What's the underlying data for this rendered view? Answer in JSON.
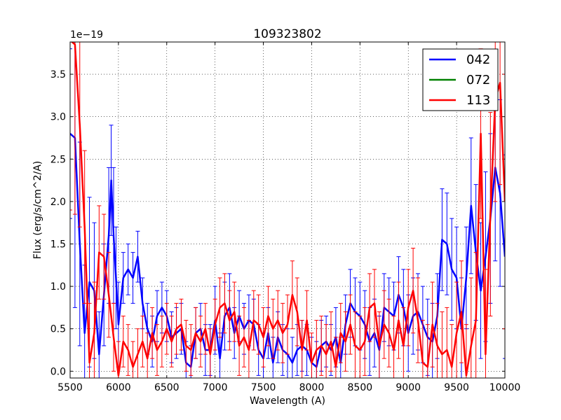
{
  "chart_data": {
    "type": "line",
    "title": "109323802",
    "xlabel": "Wavelength (A)",
    "ylabel": "Flux (erg/s/cm^2/A)",
    "offset_label": "1e−19",
    "xlim": [
      5500,
      10000
    ],
    "ylim": [
      -0.08,
      3.88
    ],
    "grid": true,
    "legend_position": "top-right",
    "x_ticks": [
      5500,
      6000,
      6500,
      7000,
      7500,
      8000,
      8500,
      9000,
      9500,
      10000
    ],
    "x_tick_labels": [
      "5500",
      "6000",
      "6500",
      "7000",
      "7500",
      "8000",
      "8500",
      "9000",
      "9500",
      "10000"
    ],
    "y_ticks": [
      0.0,
      0.5,
      1.0,
      1.5,
      2.0,
      2.5,
      3.0,
      3.5
    ],
    "y_tick_labels": [
      "0.0",
      "0.5",
      "1.0",
      "1.5",
      "2.0",
      "2.5",
      "3.0",
      "3.5"
    ],
    "series": [
      {
        "name": "042",
        "color": "#0000ff",
        "x": [
          5500,
          5550,
          5600,
          5650,
          5700,
          5750,
          5800,
          5850,
          5900,
          5925,
          5950,
          5975,
          6000,
          6050,
          6100,
          6150,
          6200,
          6250,
          6300,
          6350,
          6400,
          6450,
          6500,
          6550,
          6600,
          6650,
          6700,
          6750,
          6800,
          6850,
          6900,
          6950,
          7000,
          7050,
          7100,
          7150,
          7200,
          7250,
          7300,
          7350,
          7400,
          7450,
          7500,
          7550,
          7600,
          7650,
          7700,
          7750,
          7800,
          7850,
          7900,
          7950,
          8000,
          8050,
          8100,
          8150,
          8200,
          8250,
          8300,
          8350,
          8400,
          8450,
          8500,
          8550,
          8600,
          8650,
          8700,
          8750,
          8800,
          8850,
          8900,
          8950,
          9000,
          9050,
          9100,
          9150,
          9200,
          9250,
          9300,
          9350,
          9400,
          9450,
          9500,
          9550,
          9600,
          9650,
          9700,
          9750,
          9800,
          9850,
          9900,
          9950,
          10000
        ],
        "values": [
          2.8,
          2.75,
          1.5,
          0.45,
          1.05,
          0.95,
          0.2,
          0.9,
          1.6,
          2.25,
          1.6,
          1.1,
          0.55,
          1.1,
          1.2,
          1.1,
          1.35,
          0.8,
          0.5,
          0.35,
          0.65,
          0.75,
          0.65,
          0.4,
          0.45,
          0.5,
          0.1,
          0.05,
          0.45,
          0.5,
          0.25,
          0.25,
          0.6,
          0.15,
          0.65,
          0.75,
          0.45,
          0.65,
          0.5,
          0.6,
          0.55,
          0.25,
          0.15,
          0.45,
          0.1,
          0.4,
          0.25,
          0.2,
          0.1,
          0.25,
          0.3,
          0.25,
          0.1,
          0.05,
          0.3,
          0.35,
          0.25,
          0.4,
          0.1,
          0.55,
          0.8,
          0.7,
          0.65,
          0.55,
          0.35,
          0.45,
          0.25,
          0.75,
          0.7,
          0.65,
          0.9,
          0.75,
          0.45,
          0.65,
          0.7,
          0.55,
          0.4,
          0.35,
          0.65,
          1.55,
          1.5,
          1.2,
          1.1,
          0.5,
          1.1,
          1.95,
          1.4,
          0.95,
          1.35,
          1.8,
          2.4,
          2.1,
          1.35
        ],
        "errors": [
          1.0,
          2.0,
          1.2,
          0.8,
          1.0,
          0.8,
          0.5,
          0.6,
          0.8,
          0.65,
          0.8,
          0.6,
          0.5,
          0.3,
          0.3,
          0.3,
          0.3,
          0.3,
          0.3,
          0.3,
          0.3,
          0.3,
          0.3,
          0.3,
          0.3,
          0.3,
          0.25,
          0.25,
          0.3,
          0.3,
          0.3,
          0.3,
          0.4,
          0.3,
          0.4,
          0.4,
          0.3,
          0.3,
          0.3,
          0.3,
          0.3,
          0.3,
          0.3,
          0.3,
          0.3,
          0.3,
          0.3,
          0.3,
          0.3,
          0.3,
          0.3,
          0.3,
          0.3,
          0.3,
          0.3,
          0.3,
          0.3,
          0.35,
          0.3,
          0.35,
          0.4,
          0.4,
          0.4,
          0.4,
          0.4,
          0.4,
          0.4,
          0.4,
          0.4,
          0.4,
          0.45,
          0.45,
          0.45,
          0.45,
          0.45,
          0.45,
          0.45,
          0.45,
          0.5,
          0.6,
          0.6,
          0.6,
          0.6,
          0.6,
          0.6,
          0.8,
          0.8,
          0.8,
          1.0,
          1.0,
          1.1,
          1.1,
          1.2
        ]
      },
      {
        "name": "072",
        "color": "#008000",
        "x": [],
        "values": [],
        "errors": []
      },
      {
        "name": "113",
        "color": "#ff0000",
        "x": [
          5500,
          5550,
          5600,
          5650,
          5700,
          5750,
          5800,
          5850,
          5900,
          5950,
          6000,
          6050,
          6100,
          6150,
          6200,
          6250,
          6300,
          6350,
          6400,
          6450,
          6500,
          6550,
          6600,
          6650,
          6700,
          6750,
          6800,
          6850,
          6900,
          6950,
          7000,
          7050,
          7100,
          7150,
          7200,
          7250,
          7300,
          7350,
          7400,
          7450,
          7500,
          7550,
          7600,
          7650,
          7700,
          7750,
          7800,
          7850,
          7900,
          7950,
          8000,
          8050,
          8100,
          8150,
          8200,
          8250,
          8300,
          8350,
          8400,
          8450,
          8500,
          8550,
          8600,
          8650,
          8700,
          8750,
          8800,
          8850,
          8900,
          8950,
          9000,
          9050,
          9100,
          9150,
          9200,
          9250,
          9300,
          9350,
          9400,
          9450,
          9500,
          9550,
          9600,
          9650,
          9700,
          9750,
          9800,
          9850,
          9900,
          9950,
          10000
        ],
        "values": [
          3.9,
          3.85,
          2.9,
          1.7,
          0.1,
          0.45,
          1.4,
          1.35,
          0.9,
          0.4,
          -0.05,
          0.35,
          0.25,
          0.05,
          0.2,
          0.35,
          0.15,
          0.45,
          0.25,
          0.35,
          0.5,
          0.35,
          0.5,
          0.55,
          0.3,
          0.25,
          0.45,
          0.35,
          0.5,
          0.2,
          0.55,
          0.75,
          0.8,
          0.6,
          0.7,
          0.3,
          0.4,
          0.25,
          0.6,
          0.55,
          0.4,
          0.65,
          0.5,
          0.6,
          0.45,
          0.55,
          0.9,
          0.7,
          0.25,
          0.6,
          0.1,
          0.25,
          0.3,
          0.2,
          0.35,
          0.05,
          0.45,
          0.35,
          0.55,
          0.3,
          0.25,
          0.35,
          0.75,
          0.8,
          0.3,
          0.55,
          0.45,
          0.25,
          0.6,
          0.3,
          0.75,
          0.95,
          0.6,
          0.1,
          0.05,
          0.55,
          0.3,
          0.2,
          0.25,
          0.05,
          0.45,
          0.7,
          -0.05,
          0.3,
          0.6,
          2.8,
          0.2,
          1.85,
          3.2,
          3.4,
          2.0
        ],
        "errors": [
          2.0,
          2.0,
          1.2,
          0.9,
          0.7,
          0.6,
          0.55,
          0.5,
          0.5,
          0.4,
          0.4,
          0.3,
          0.3,
          0.3,
          0.3,
          0.3,
          0.3,
          0.3,
          0.3,
          0.3,
          0.3,
          0.3,
          0.3,
          0.3,
          0.3,
          0.3,
          0.3,
          0.3,
          0.3,
          0.3,
          0.3,
          0.35,
          0.35,
          0.35,
          0.35,
          0.35,
          0.35,
          0.35,
          0.35,
          0.35,
          0.35,
          0.35,
          0.35,
          0.35,
          0.35,
          0.35,
          0.4,
          0.4,
          0.35,
          0.35,
          0.35,
          0.35,
          0.35,
          0.35,
          0.35,
          0.35,
          0.35,
          0.35,
          0.35,
          0.4,
          0.4,
          0.4,
          0.4,
          0.4,
          0.4,
          0.4,
          0.4,
          0.4,
          0.45,
          0.45,
          0.45,
          0.5,
          0.5,
          0.5,
          0.5,
          0.5,
          0.5,
          0.5,
          0.5,
          0.5,
          0.6,
          0.6,
          0.6,
          0.8,
          0.8,
          1.0,
          1.0,
          1.2,
          1.2,
          1.2,
          1.5
        ]
      }
    ]
  }
}
